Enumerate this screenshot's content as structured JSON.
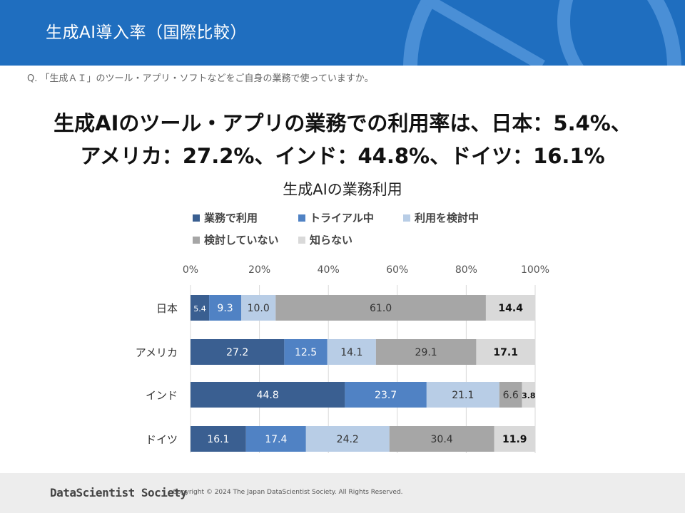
{
  "header": {
    "title": "生成AI導入率（国際比較）"
  },
  "question": "Q. 「生成ＡＩ」のツール・アプリ・ソフトなどをご自身の業務で使っていますか。",
  "headline": {
    "line1": "生成AIのツール・アプリの業務での利用率は、日本：5.4%、",
    "line2": "アメリカ：27.2%、インド：44.8%、ドイツ：16.1%"
  },
  "footer": {
    "logo": "DataScientist Society",
    "copyright": "Copyright © 2024 The Japan DataScientist Society. All Rights Reserved."
  },
  "colors": {
    "header_bg": "#1f6ebf",
    "s1": "#3a5f91",
    "s2": "#5082c4",
    "s3": "#b8cde6",
    "s4": "#a6a6a6",
    "s5": "#d9d9d9"
  },
  "chart_data": {
    "type": "bar",
    "orientation": "horizontal",
    "stacked": true,
    "title": "生成AIの業務利用",
    "categories": [
      "日本",
      "アメリカ",
      "インド",
      "ドイツ"
    ],
    "xlim": [
      0,
      100
    ],
    "xticks": [
      "0%",
      "20%",
      "40%",
      "60%",
      "80%",
      "100%"
    ],
    "legend_position": "top",
    "grid": true,
    "series": [
      {
        "name": "業務で利用",
        "values": [
          5.4,
          27.2,
          44.8,
          16.1
        ],
        "color": "#3a5f91",
        "label_color": "#ffffff"
      },
      {
        "name": "トライアル中",
        "values": [
          9.3,
          12.5,
          23.7,
          17.4
        ],
        "color": "#5082c4",
        "label_color": "#ffffff"
      },
      {
        "name": "利用を検討中",
        "values": [
          10.0,
          14.1,
          21.1,
          24.2
        ],
        "color": "#b8cde6",
        "label_color": "#333333"
      },
      {
        "name": "検討していない",
        "values": [
          61.0,
          29.1,
          6.6,
          30.4
        ],
        "color": "#a6a6a6",
        "label_color": "#333333"
      },
      {
        "name": "知らない",
        "values": [
          14.4,
          17.1,
          3.8,
          11.9
        ],
        "color": "#d9d9d9",
        "label_color": "#111111"
      }
    ]
  }
}
